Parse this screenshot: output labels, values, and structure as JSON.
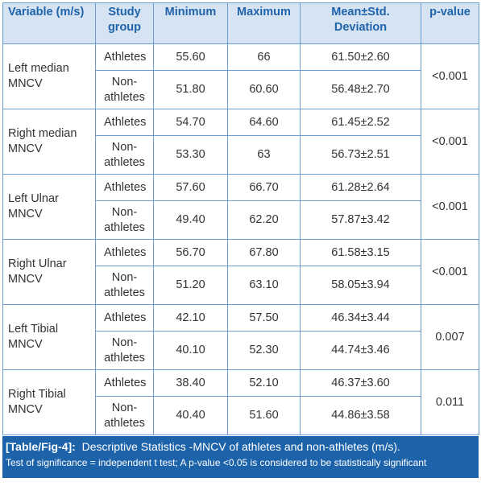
{
  "table": {
    "header": [
      "Variable (m/s)",
      "Study group",
      "Minimum",
      "Maximum",
      "Mean±Std. Deviation",
      "p-value"
    ],
    "rows": [
      {
        "variable": "Left median MNCV",
        "p_value": "<0.001",
        "groups": [
          {
            "group": "Athletes",
            "min": "55.60",
            "max": "66",
            "mean_sd": "61.50±2.60"
          },
          {
            "group": "Non-athletes",
            "min": "51.80",
            "max": "60.60",
            "mean_sd": "56.48±2.70"
          }
        ]
      },
      {
        "variable": "Right median MNCV",
        "p_value": "<0.001",
        "groups": [
          {
            "group": "Athletes",
            "min": "54.70",
            "max": "64.60",
            "mean_sd": "61.45±2.52"
          },
          {
            "group": "Non-athletes",
            "min": "53.30",
            "max": "63",
            "mean_sd": "56.73±2.51"
          }
        ]
      },
      {
        "variable": "Left Ulnar MNCV",
        "p_value": "<0.001",
        "groups": [
          {
            "group": "Athletes",
            "min": "57.60",
            "max": "66.70",
            "mean_sd": "61.28±2.64"
          },
          {
            "group": "Non-athletes",
            "min": "49.40",
            "max": "62.20",
            "mean_sd": "57.87±3.42"
          }
        ]
      },
      {
        "variable": "Right Ulnar MNCV",
        "p_value": "<0.001",
        "groups": [
          {
            "group": "Athletes",
            "min": "56.70",
            "max": "67.80",
            "mean_sd": "61.58±3.15"
          },
          {
            "group": "Non-athletes",
            "min": "51.20",
            "max": "63.10",
            "mean_sd": "58.05±3.94"
          }
        ]
      },
      {
        "variable": "Left Tibial MNCV",
        "p_value": "0.007",
        "groups": [
          {
            "group": "Athletes",
            "min": "42.10",
            "max": "57.50",
            "mean_sd": "46.34±3.44"
          },
          {
            "group": "Non-athletes",
            "min": "40.10",
            "max": "52.30",
            "mean_sd": "44.74±3.46"
          }
        ]
      },
      {
        "variable": "Right Tibial MNCV",
        "p_value": "0.011",
        "groups": [
          {
            "group": "Athletes",
            "min": "38.40",
            "max": "52.10",
            "mean_sd": "46.37±3.60"
          },
          {
            "group": "Non-athletes",
            "min": "40.40",
            "max": "51.60",
            "mean_sd": "44.86±3.58"
          }
        ]
      }
    ]
  },
  "caption": {
    "label": "[Table/Fig-4]:",
    "text": "Descriptive Statistics -MNCV of athletes and non-athletes (m/s).",
    "note": "Test of significance = independent t test; A p-value <0.05 is considered to be statistically significant"
  }
}
